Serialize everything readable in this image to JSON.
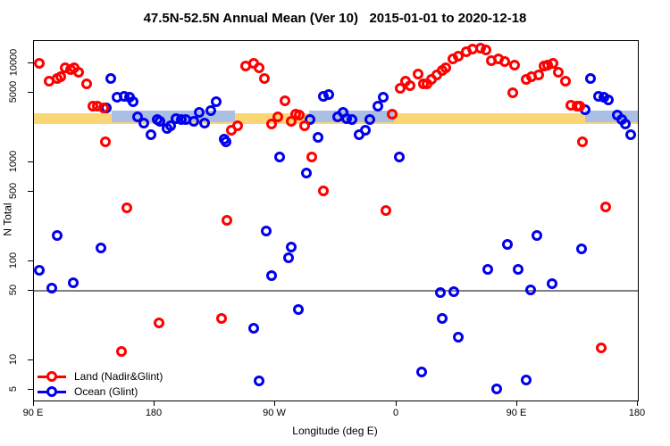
{
  "title": "47.5N-52.5N Annual Mean (Ver 10)   2015-01-01 to 2020-12-18",
  "chart_data": {
    "type": "scatter",
    "title": "47.5N-52.5N Annual Mean (Ver 10)   2015-01-01 to 2020-12-18",
    "xlabel": "Longitude (deg E)",
    "ylabel": "N Total",
    "x_axis": {
      "range": [
        90,
        540
      ],
      "ticks": [
        {
          "pos": 90,
          "label": "90 E"
        },
        {
          "pos": 180,
          "label": "180"
        },
        {
          "pos": 270,
          "label": "90 W"
        },
        {
          "pos": 360,
          "label": "0"
        },
        {
          "pos": 450,
          "label": "90 E"
        },
        {
          "pos": 540,
          "label": "180"
        }
      ]
    },
    "y_axis": {
      "scale": "log",
      "range": [
        3.9,
        16800
      ],
      "ticks": [
        {
          "value": 10000,
          "label": "10000"
        },
        {
          "value": 5000,
          "label": "5000"
        },
        {
          "value": 1000,
          "label": "1000"
        },
        {
          "value": 500,
          "label": "500"
        },
        {
          "value": 100,
          "label": "100"
        },
        {
          "value": 50,
          "label": "50"
        },
        {
          "value": 10,
          "label": "10"
        },
        {
          "value": 5,
          "label": "5"
        }
      ]
    },
    "grid": "off",
    "reference_line": {
      "y": 50,
      "color": "#7f7f7f"
    },
    "bands": [
      {
        "name": "land-mean-band",
        "color": "#fad774",
        "y_range": [
          2400,
          3100
        ],
        "segments": [
          [
            90,
            540
          ]
        ]
      },
      {
        "name": "ocean-mean-band",
        "color": "#aabfe3",
        "y_range": [
          2540,
          3330
        ],
        "segments": [
          [
            148,
            240
          ],
          [
            295,
            358
          ],
          [
            501,
            540
          ]
        ]
      }
    ],
    "legend": {
      "position": "bottom-left"
    },
    "series": [
      {
        "name": "Land (Nadir&Glint)",
        "color": "#ff0000",
        "points": [
          [
            94,
            10000
          ],
          [
            101,
            6600
          ],
          [
            107,
            7000
          ],
          [
            110,
            7300
          ],
          [
            113,
            9000
          ],
          [
            117,
            8650
          ],
          [
            120,
            9000
          ],
          [
            123,
            8100
          ],
          [
            129,
            6200
          ],
          [
            134,
            3700
          ],
          [
            137,
            3700
          ],
          [
            142,
            3540
          ],
          [
            143,
            1610
          ],
          [
            155,
            12.3
          ],
          [
            159,
            345
          ],
          [
            183,
            24
          ],
          [
            230,
            26.7
          ],
          [
            234,
            260
          ],
          [
            237,
            2120
          ],
          [
            242,
            2340
          ],
          [
            248,
            9400
          ],
          [
            254,
            10000
          ],
          [
            258,
            9000
          ],
          [
            262,
            7000
          ],
          [
            267,
            2440
          ],
          [
            272,
            2880
          ],
          [
            277,
            4190
          ],
          [
            282,
            2600
          ],
          [
            285,
            3060
          ],
          [
            288,
            3000
          ],
          [
            292,
            2340
          ],
          [
            297,
            1130
          ],
          [
            306,
            510
          ],
          [
            352,
            325
          ],
          [
            357,
            3060
          ],
          [
            363,
            5600
          ],
          [
            367,
            6600
          ],
          [
            370,
            6000
          ],
          [
            376,
            7800
          ],
          [
            380,
            6200
          ],
          [
            383,
            6200
          ],
          [
            386,
            6890
          ],
          [
            390,
            7630
          ],
          [
            394,
            8470
          ],
          [
            397,
            9000
          ],
          [
            402,
            11100
          ],
          [
            406,
            11800
          ],
          [
            412,
            13100
          ],
          [
            417,
            13900
          ],
          [
            423,
            14200
          ],
          [
            427,
            13600
          ],
          [
            431,
            10650
          ],
          [
            436,
            11100
          ],
          [
            441,
            10400
          ],
          [
            447,
            5040
          ],
          [
            448,
            9600
          ],
          [
            457,
            6890
          ],
          [
            461,
            7320
          ],
          [
            466,
            7630
          ],
          [
            470,
            9400
          ],
          [
            473,
            9600
          ],
          [
            477,
            10000
          ],
          [
            481,
            8100
          ],
          [
            486,
            6600
          ],
          [
            490,
            3770
          ],
          [
            495,
            3700
          ],
          [
            497,
            3700
          ],
          [
            499,
            1610
          ],
          [
            513,
            13.4
          ],
          [
            516,
            354
          ]
        ]
      },
      {
        "name": "Ocean (Glint)",
        "color": "#0000ee",
        "points": [
          [
            94,
            81
          ],
          [
            103,
            53.6
          ],
          [
            107,
            182
          ],
          [
            119,
            60.3
          ],
          [
            140,
            137
          ],
          [
            144,
            3540
          ],
          [
            147,
            7000
          ],
          [
            152,
            4540
          ],
          [
            157,
            4640
          ],
          [
            161,
            4540
          ],
          [
            164,
            4100
          ],
          [
            167,
            2880
          ],
          [
            172,
            2500
          ],
          [
            177,
            1900
          ],
          [
            182,
            2700
          ],
          [
            184,
            2600
          ],
          [
            189,
            2200
          ],
          [
            192,
            2340
          ],
          [
            196,
            2760
          ],
          [
            200,
            2700
          ],
          [
            203,
            2700
          ],
          [
            209,
            2600
          ],
          [
            213,
            3200
          ],
          [
            217,
            2500
          ],
          [
            222,
            3330
          ],
          [
            226,
            4100
          ],
          [
            232,
            1720
          ],
          [
            233,
            1610
          ],
          [
            254,
            21
          ],
          [
            258,
            6.2
          ],
          [
            263,
            203
          ],
          [
            267,
            72
          ],
          [
            273,
            1130
          ],
          [
            280,
            108
          ],
          [
            282,
            138
          ],
          [
            287,
            32.5
          ],
          [
            293,
            780
          ],
          [
            296,
            2700
          ],
          [
            302,
            1780
          ],
          [
            306,
            4640
          ],
          [
            310,
            4840
          ],
          [
            316,
            2880
          ],
          [
            320,
            3200
          ],
          [
            323,
            2760
          ],
          [
            327,
            2700
          ],
          [
            332,
            1900
          ],
          [
            337,
            2120
          ],
          [
            340,
            2700
          ],
          [
            346,
            3700
          ],
          [
            350,
            4540
          ],
          [
            362,
            1130
          ],
          [
            379,
            7.6
          ],
          [
            393,
            48.4
          ],
          [
            394,
            26.7
          ],
          [
            403,
            49
          ],
          [
            406,
            17.1
          ],
          [
            428,
            83
          ],
          [
            435,
            5.1
          ],
          [
            443,
            147
          ],
          [
            451,
            83
          ],
          [
            457,
            6.3
          ],
          [
            460,
            51
          ],
          [
            465,
            182
          ],
          [
            476,
            60
          ],
          [
            498,
            135
          ],
          [
            501,
            3400
          ],
          [
            505,
            7000
          ],
          [
            511,
            4640
          ],
          [
            515,
            4540
          ],
          [
            518,
            4300
          ],
          [
            525,
            3000
          ],
          [
            528,
            2700
          ],
          [
            531,
            2440
          ],
          [
            535,
            1900
          ]
        ]
      }
    ]
  }
}
